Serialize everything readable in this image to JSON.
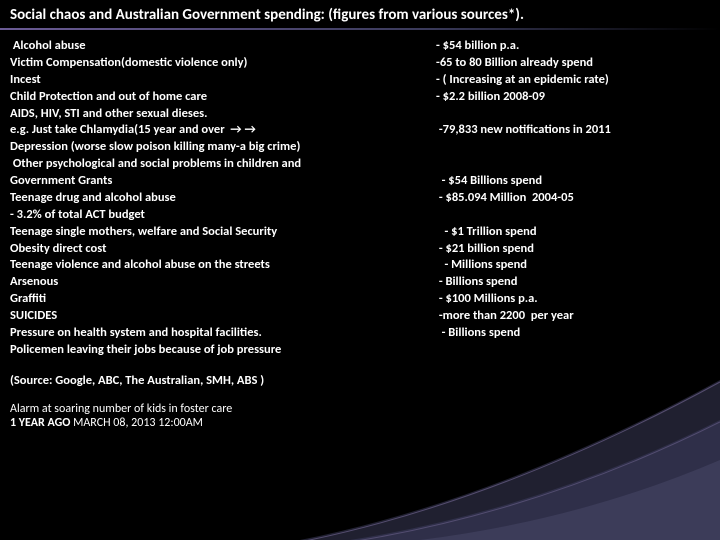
{
  "title": "Social chaos and Australian Government spending: (figures from various sources*).",
  "left": [
    " Alcohol abuse",
    "Victim Compensation(domestic violence only)",
    "Incest",
    "Child Protection and out of home care",
    "AIDS, HIV, STI and other sexual dieses.",
    "e.g. Just take Chlamydia(15 year and over  → →",
    "Depression (worse slow poison killing many-a big crime)",
    " Other psychological and social problems in children and",
    "Government Grants",
    "Teenage drug and alcohol abuse",
    "- 3.2% of total ACT budget",
    "Teenage single mothers, welfare and Social Security",
    "Obesity direct cost",
    "Teenage violence and alcohol abuse on the streets",
    "Arsenous",
    "Graffiti",
    "SUICIDES",
    "Pressure on health system and hospital facilities.",
    "Policemen leaving their jobs because of job pressure"
  ],
  "right": [
    "- $54 billion p.a.",
    "-65 to 80 Billion already spend",
    "- ( Increasing at an epidemic rate)",
    "- $2.2 billion 2008-09",
    "",
    " -79,833 new notifications in 2011",
    "",
    "",
    "  - $54 Billions spend",
    " - $85.094 Million  2004-05",
    "",
    "   - $1 Trillion spend",
    " - $21 billion spend",
    "   - Millions spend",
    " - Billions spend",
    " - $100 Millions p.a.",
    " -more than 2200  per year",
    "  - Billions spend",
    ""
  ],
  "source": " (Source: Google, ABC, The Australian, SMH, ABS )",
  "alarm_line1": "Alarm at soaring number of kids in foster care",
  "alarm_bold": "1 YEAR AGO",
  "alarm_rest": " MARCH 08, 2013 12:00AM",
  "colors": {
    "background": "#000000",
    "text": "#ffffff",
    "underline_start": "#6b5b95",
    "swoosh1": "#4a4a6a",
    "swoosh2": "#2d2d44"
  }
}
